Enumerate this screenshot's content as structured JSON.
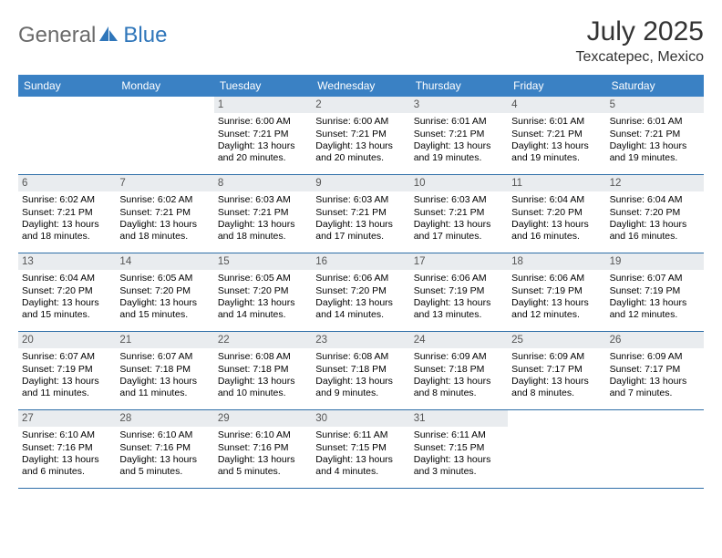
{
  "brand": {
    "part1": "General",
    "part2": "Blue"
  },
  "title": "July 2025",
  "location": "Texcatepec, Mexico",
  "colors": {
    "header_bg": "#3a81c4",
    "daynum_bg": "#e9ecef",
    "row_divider": "#2f6fa8",
    "logo_gray": "#6a6a6a",
    "logo_blue": "#2f76ba"
  },
  "weekdays": [
    "Sunday",
    "Monday",
    "Tuesday",
    "Wednesday",
    "Thursday",
    "Friday",
    "Saturday"
  ],
  "leading_blanks": 2,
  "days": [
    {
      "n": "1",
      "sr": "6:00 AM",
      "ss": "7:21 PM",
      "dl": "13 hours and 20 minutes."
    },
    {
      "n": "2",
      "sr": "6:00 AM",
      "ss": "7:21 PM",
      "dl": "13 hours and 20 minutes."
    },
    {
      "n": "3",
      "sr": "6:01 AM",
      "ss": "7:21 PM",
      "dl": "13 hours and 19 minutes."
    },
    {
      "n": "4",
      "sr": "6:01 AM",
      "ss": "7:21 PM",
      "dl": "13 hours and 19 minutes."
    },
    {
      "n": "5",
      "sr": "6:01 AM",
      "ss": "7:21 PM",
      "dl": "13 hours and 19 minutes."
    },
    {
      "n": "6",
      "sr": "6:02 AM",
      "ss": "7:21 PM",
      "dl": "13 hours and 18 minutes."
    },
    {
      "n": "7",
      "sr": "6:02 AM",
      "ss": "7:21 PM",
      "dl": "13 hours and 18 minutes."
    },
    {
      "n": "8",
      "sr": "6:03 AM",
      "ss": "7:21 PM",
      "dl": "13 hours and 18 minutes."
    },
    {
      "n": "9",
      "sr": "6:03 AM",
      "ss": "7:21 PM",
      "dl": "13 hours and 17 minutes."
    },
    {
      "n": "10",
      "sr": "6:03 AM",
      "ss": "7:21 PM",
      "dl": "13 hours and 17 minutes."
    },
    {
      "n": "11",
      "sr": "6:04 AM",
      "ss": "7:20 PM",
      "dl": "13 hours and 16 minutes."
    },
    {
      "n": "12",
      "sr": "6:04 AM",
      "ss": "7:20 PM",
      "dl": "13 hours and 16 minutes."
    },
    {
      "n": "13",
      "sr": "6:04 AM",
      "ss": "7:20 PM",
      "dl": "13 hours and 15 minutes."
    },
    {
      "n": "14",
      "sr": "6:05 AM",
      "ss": "7:20 PM",
      "dl": "13 hours and 15 minutes."
    },
    {
      "n": "15",
      "sr": "6:05 AM",
      "ss": "7:20 PM",
      "dl": "13 hours and 14 minutes."
    },
    {
      "n": "16",
      "sr": "6:06 AM",
      "ss": "7:20 PM",
      "dl": "13 hours and 14 minutes."
    },
    {
      "n": "17",
      "sr": "6:06 AM",
      "ss": "7:19 PM",
      "dl": "13 hours and 13 minutes."
    },
    {
      "n": "18",
      "sr": "6:06 AM",
      "ss": "7:19 PM",
      "dl": "13 hours and 12 minutes."
    },
    {
      "n": "19",
      "sr": "6:07 AM",
      "ss": "7:19 PM",
      "dl": "13 hours and 12 minutes."
    },
    {
      "n": "20",
      "sr": "6:07 AM",
      "ss": "7:19 PM",
      "dl": "13 hours and 11 minutes."
    },
    {
      "n": "21",
      "sr": "6:07 AM",
      "ss": "7:18 PM",
      "dl": "13 hours and 11 minutes."
    },
    {
      "n": "22",
      "sr": "6:08 AM",
      "ss": "7:18 PM",
      "dl": "13 hours and 10 minutes."
    },
    {
      "n": "23",
      "sr": "6:08 AM",
      "ss": "7:18 PM",
      "dl": "13 hours and 9 minutes."
    },
    {
      "n": "24",
      "sr": "6:09 AM",
      "ss": "7:18 PM",
      "dl": "13 hours and 8 minutes."
    },
    {
      "n": "25",
      "sr": "6:09 AM",
      "ss": "7:17 PM",
      "dl": "13 hours and 8 minutes."
    },
    {
      "n": "26",
      "sr": "6:09 AM",
      "ss": "7:17 PM",
      "dl": "13 hours and 7 minutes."
    },
    {
      "n": "27",
      "sr": "6:10 AM",
      "ss": "7:16 PM",
      "dl": "13 hours and 6 minutes."
    },
    {
      "n": "28",
      "sr": "6:10 AM",
      "ss": "7:16 PM",
      "dl": "13 hours and 5 minutes."
    },
    {
      "n": "29",
      "sr": "6:10 AM",
      "ss": "7:16 PM",
      "dl": "13 hours and 5 minutes."
    },
    {
      "n": "30",
      "sr": "6:11 AM",
      "ss": "7:15 PM",
      "dl": "13 hours and 4 minutes."
    },
    {
      "n": "31",
      "sr": "6:11 AM",
      "ss": "7:15 PM",
      "dl": "13 hours and 3 minutes."
    }
  ],
  "labels": {
    "sunrise": "Sunrise:",
    "sunset": "Sunset:",
    "daylight": "Daylight:"
  }
}
